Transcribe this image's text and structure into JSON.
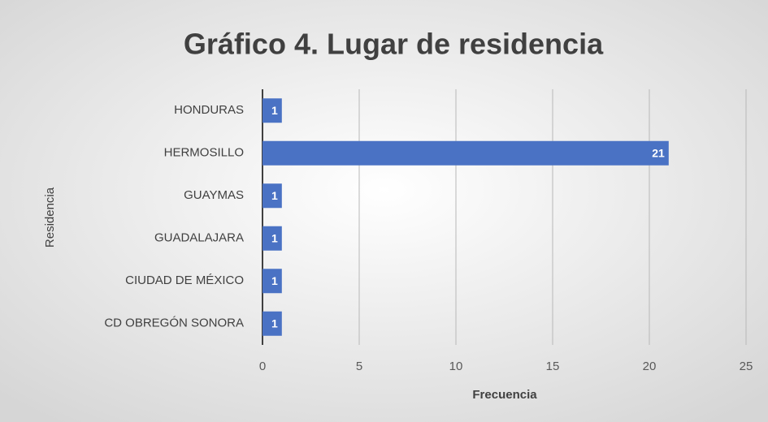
{
  "chart_data": {
    "type": "hbar",
    "title": "Gráfico 4. Lugar de residencia",
    "xlabel": "Frecuencia",
    "ylabel": "Residencia",
    "categories": [
      "HONDURAS",
      "HERMOSILLO",
      "GUAYMAS",
      "GUADALAJARA",
      "CIUDAD DE MÉXICO",
      "CD OBREGÓN SONORA"
    ],
    "values": [
      1,
      21,
      1,
      1,
      1,
      1
    ],
    "color": "#4a72c4",
    "xlim": [
      0,
      25
    ],
    "xticks": [
      0,
      5,
      10,
      15,
      20,
      25
    ],
    "grid": true
  }
}
